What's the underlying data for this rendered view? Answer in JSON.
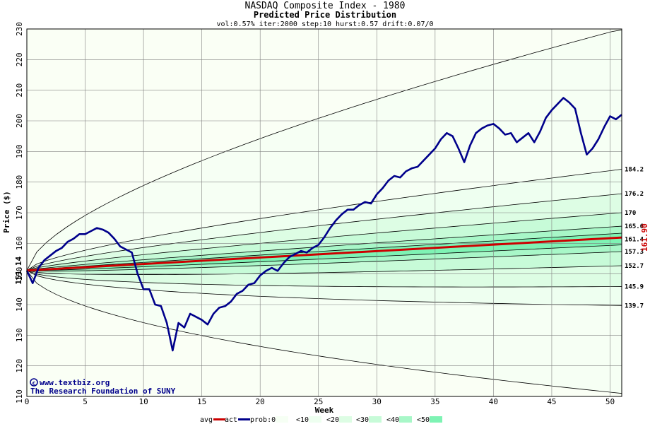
{
  "colors": {
    "background": "#fafff5",
    "grid": "#808080",
    "avg": "#cc0000",
    "act": "#00008b",
    "band10": "#eefff0",
    "band20": "#ddfde4",
    "band30": "#c7fbd8",
    "band40": "#a8f7c8",
    "band50": "#7ef3b4"
  },
  "footer": {
    "credit_line1": "www.textbiz.org",
    "credit_line2": "The Research Foundation of SUNY",
    "credit_icon": "copyright-icon"
  },
  "chart_data": {
    "type": "line",
    "title": "NASDAQ Composite Index - 1980",
    "subtitle": "Predicted Price Distribution",
    "params": "vol:0.57% iter:2000 step:10 hurst:0.57 drift:0.07/0",
    "xlabel": "Week",
    "ylabel": "Price ($)",
    "xlim": [
      0,
      51
    ],
    "ylim": [
      110,
      230
    ],
    "xticks": [
      0,
      5,
      10,
      15,
      20,
      25,
      30,
      35,
      40,
      45,
      50
    ],
    "yticks": [
      110,
      120,
      130,
      140,
      150,
      160,
      170,
      180,
      190,
      200,
      210,
      220,
      230
    ],
    "grid": true,
    "start_value": 151.14,
    "start_label": "151.14",
    "end_value": 161.9,
    "end_label": "161.90",
    "right_labels": [
      "184.2",
      "176.2",
      "170",
      "165.6",
      "161.4",
      "157.3",
      "152.7",
      "145.9",
      "139.7"
    ],
    "bands": [
      {
        "level": "0%",
        "lower": 111.0,
        "upper": 230.0
      },
      {
        "level": "10%",
        "lower": 139.7,
        "upper": 184.2
      },
      {
        "level": "20%",
        "lower": 145.9,
        "upper": 176.2
      },
      {
        "level": "30%",
        "lower": 152.7,
        "upper": 170.0
      },
      {
        "level": "40%",
        "lower": 157.3,
        "upper": 165.6
      },
      {
        "level": "50%",
        "lower": 159.5,
        "upper": 163.3
      }
    ],
    "avg": {
      "x": [
        0,
        51
      ],
      "y": [
        151.14,
        161.9
      ]
    },
    "actual": {
      "x": [
        0,
        0.5,
        1,
        1.5,
        2,
        2.5,
        3,
        3.5,
        4,
        4.5,
        5,
        5.5,
        6,
        6.5,
        7,
        7.5,
        8,
        8.5,
        9,
        9.5,
        10,
        10.5,
        11,
        11.5,
        12,
        12.5,
        13,
        13.5,
        14,
        14.5,
        15,
        15.5,
        16,
        16.5,
        17,
        17.5,
        18,
        18.5,
        19,
        19.5,
        20,
        20.5,
        21,
        21.5,
        22,
        22.5,
        23,
        23.5,
        24,
        24.5,
        25,
        25.5,
        26,
        26.5,
        27,
        27.5,
        28,
        28.5,
        29,
        29.5,
        30,
        30.5,
        31,
        31.5,
        32,
        32.5,
        33,
        33.5,
        34,
        34.5,
        35,
        35.5,
        36,
        36.5,
        37,
        37.5,
        38,
        38.5,
        39,
        39.5,
        40,
        40.5,
        41,
        41.5,
        42,
        42.5,
        43,
        43.5,
        44,
        44.5,
        45,
        45.5,
        46,
        46.5,
        47,
        47.5,
        48,
        48.5,
        49,
        49.5,
        50,
        50.5,
        51
      ],
      "y": [
        151.1,
        147.0,
        152.0,
        154.5,
        156.0,
        157.5,
        158.5,
        160.5,
        161.5,
        163.0,
        163.0,
        164.0,
        165.0,
        164.5,
        163.5,
        161.5,
        159.0,
        158.0,
        157.0,
        150.0,
        145.0,
        145.0,
        140.0,
        139.5,
        134.0,
        125.0,
        134.0,
        132.5,
        137.0,
        136.0,
        135.0,
        133.5,
        137.0,
        139.0,
        139.5,
        141.0,
        143.5,
        144.5,
        146.5,
        147.0,
        149.5,
        151.0,
        152.0,
        151.0,
        153.5,
        155.5,
        156.5,
        157.5,
        157.0,
        158.5,
        159.5,
        162.0,
        165.0,
        167.5,
        169.5,
        171.0,
        171.0,
        172.5,
        173.5,
        173.0,
        176.0,
        178.0,
        180.5,
        182.0,
        181.5,
        183.5,
        184.5,
        185.0,
        187.0,
        189.0,
        191.0,
        194.0,
        196.0,
        195.0,
        191.0,
        186.5,
        192.0,
        196.0,
        197.5,
        198.5,
        199.0,
        197.5,
        195.5,
        196.0,
        193.0,
        194.5,
        196.0,
        193.0,
        196.5,
        201.0,
        203.5,
        205.5,
        207.5,
        206.0,
        204.0,
        196.0,
        189.0,
        191.0,
        194.0,
        198.0,
        201.5,
        200.5,
        202.0
      ]
    },
    "legend": [
      {
        "label": "avg",
        "kind": "line",
        "color": "#cc0000"
      },
      {
        "label": "act",
        "kind": "line",
        "color": "#00008b"
      },
      {
        "label": "prob:0%",
        "kind": "box",
        "color": "#f6fff4"
      },
      {
        "label": "<10%",
        "kind": "box",
        "color": "#eefff0"
      },
      {
        "label": "<20%",
        "kind": "box",
        "color": "#ddfde4"
      },
      {
        "label": "<30%",
        "kind": "box",
        "color": "#c7fbd8"
      },
      {
        "label": "<40%",
        "kind": "box",
        "color": "#a8f7c8"
      },
      {
        "label": "<50%",
        "kind": "box",
        "color": "#7ef3b4"
      }
    ]
  }
}
